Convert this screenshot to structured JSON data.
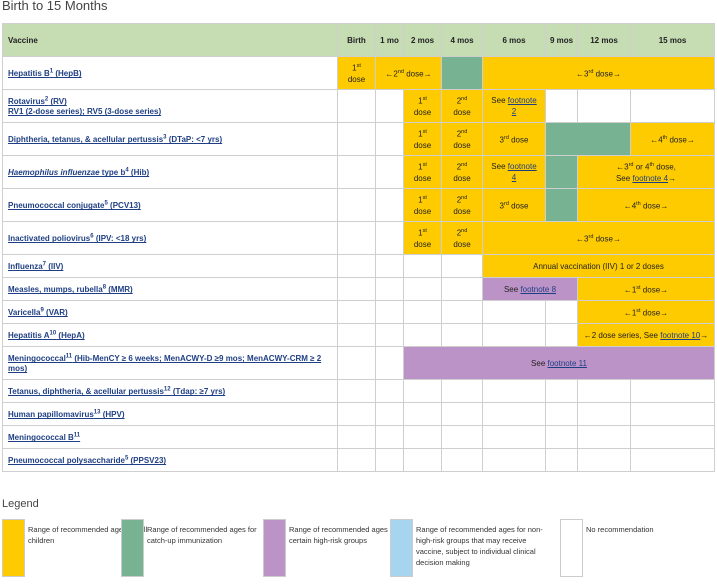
{
  "page": {
    "title": "Birth to 15 Months"
  },
  "table": {
    "headers": {
      "vaccine": "Vaccine",
      "birth": "Birth",
      "m1": "1 mo",
      "m2": "2 mos",
      "m4": "4 mos",
      "m6": "6 mos",
      "m9": "9 mos",
      "m12": "12 mos",
      "m15": "15 mos"
    },
    "rows": {
      "hepb": {
        "name": "Hepatitis B",
        "fn": "1",
        "abbr": " (HepB)",
        "d1": "1",
        "d2": "2",
        "d2_text": "nd",
        "d3": "3",
        "d3_text": "rd"
      },
      "rv": {
        "name": "Rotavirus",
        "fn": "2",
        "abbr": " (RV)",
        "line2": "RV1 (2-dose series); RV5 (3-dose series)",
        "d1": "1",
        "d2": "2",
        "see": "See",
        "footnote_label": "footnote",
        "footnote_num": "2"
      },
      "dtap": {
        "name": "Diphtheria, tetanus, & acellular pertussis",
        "fn": "3",
        "abbr": " (DTaP: <7 yrs)",
        "d1": "1",
        "d2": "2",
        "d3": "3",
        "d4": "4"
      },
      "hib": {
        "name_italic": "Haemophilus influenzae",
        "name_rest": " type b",
        "fn": "4",
        "abbr": " (Hib)",
        "d1": "1",
        "d2": "2",
        "see": "See",
        "footnote_label": "footnote",
        "footnote_num": "4",
        "range_line1": "3",
        "range_line1_text": "rd",
        "range_or": " or 4",
        "range_or_text": "th",
        "range_dose": " dose,",
        "range_line2_see": "See ",
        "range_line2_fn": "footnote 4"
      },
      "pcv": {
        "name": "Pneumococcal conjugate",
        "fn": "5",
        "abbr": " (PCV13)",
        "d1": "1",
        "d2": "2",
        "d3": "3",
        "d4": "4"
      },
      "ipv": {
        "name": "Inactivated poliovirus",
        "fn": "6",
        "abbr": " (IPV: <18 yrs)",
        "d1": "1",
        "d2": "2",
        "d3": "3"
      },
      "iiv": {
        "name": "Influenza",
        "fn": "7",
        "abbr": " (IIV)",
        "annual": "Annual vaccination (IIV) 1 or 2 doses"
      },
      "mmr": {
        "name": "Measles, mumps, rubella",
        "fn": "8",
        "abbr": " (MMR)",
        "see": "See ",
        "footnote": "footnote 8",
        "d1": "1"
      },
      "var": {
        "name": "Varicella",
        "fn": "9",
        "abbr": " (VAR)",
        "d1": "1"
      },
      "hepa": {
        "name": "Hepatitis A",
        "fn": "10",
        "abbr": " (HepA)",
        "series": "2 dose series, See ",
        "footnote": "footnote 10"
      },
      "mening": {
        "name": "Meningococcal",
        "fn": "11",
        "abbr": " (Hib-MenCY ≥ 6 weeks; MenACWY-D ≥9 mos; MenACWY-CRM ≥ 2 mos)",
        "see": "See ",
        "footnote": "footnote 11"
      },
      "tdap": {
        "name": "Tetanus, diphtheria, & acellular pertussis",
        "fn": "12",
        "abbr": " (Tdap: ≥7 yrs)"
      },
      "hpv": {
        "name": "Human papillomavirus",
        "fn": "13",
        "abbr": " (HPV)"
      },
      "menb": {
        "name": "Meningococcal B",
        "fn": "11",
        "abbr": ""
      },
      "ppsv": {
        "name": "Pneumococcal polysaccharide",
        "fn": "5",
        "abbr": " (PPSV23)"
      }
    },
    "common": {
      "st": "st",
      "nd": "nd",
      "rd": "rd",
      "th": "th",
      "dose": "dose",
      "dose_arrow": " dose",
      "arrow_l": "←",
      "arrow_r": "→"
    }
  },
  "legend": {
    "title": "Legend",
    "items": [
      {
        "text": "Range of recommended ages for all children",
        "color": "#fecb00"
      },
      {
        "text": "Range of recommended ages for catch-up immunization",
        "color": "#77b293"
      },
      {
        "text": "Range of recommended ages for certain high-risk groups",
        "color": "#bc93c6"
      },
      {
        "text": "Range of recommended ages for non-high-risk groups that may receive vaccine, subject to individual clinical decision making",
        "color": "#a7d5f0"
      },
      {
        "text": "No recommendation",
        "color": "#ffffff"
      }
    ]
  }
}
